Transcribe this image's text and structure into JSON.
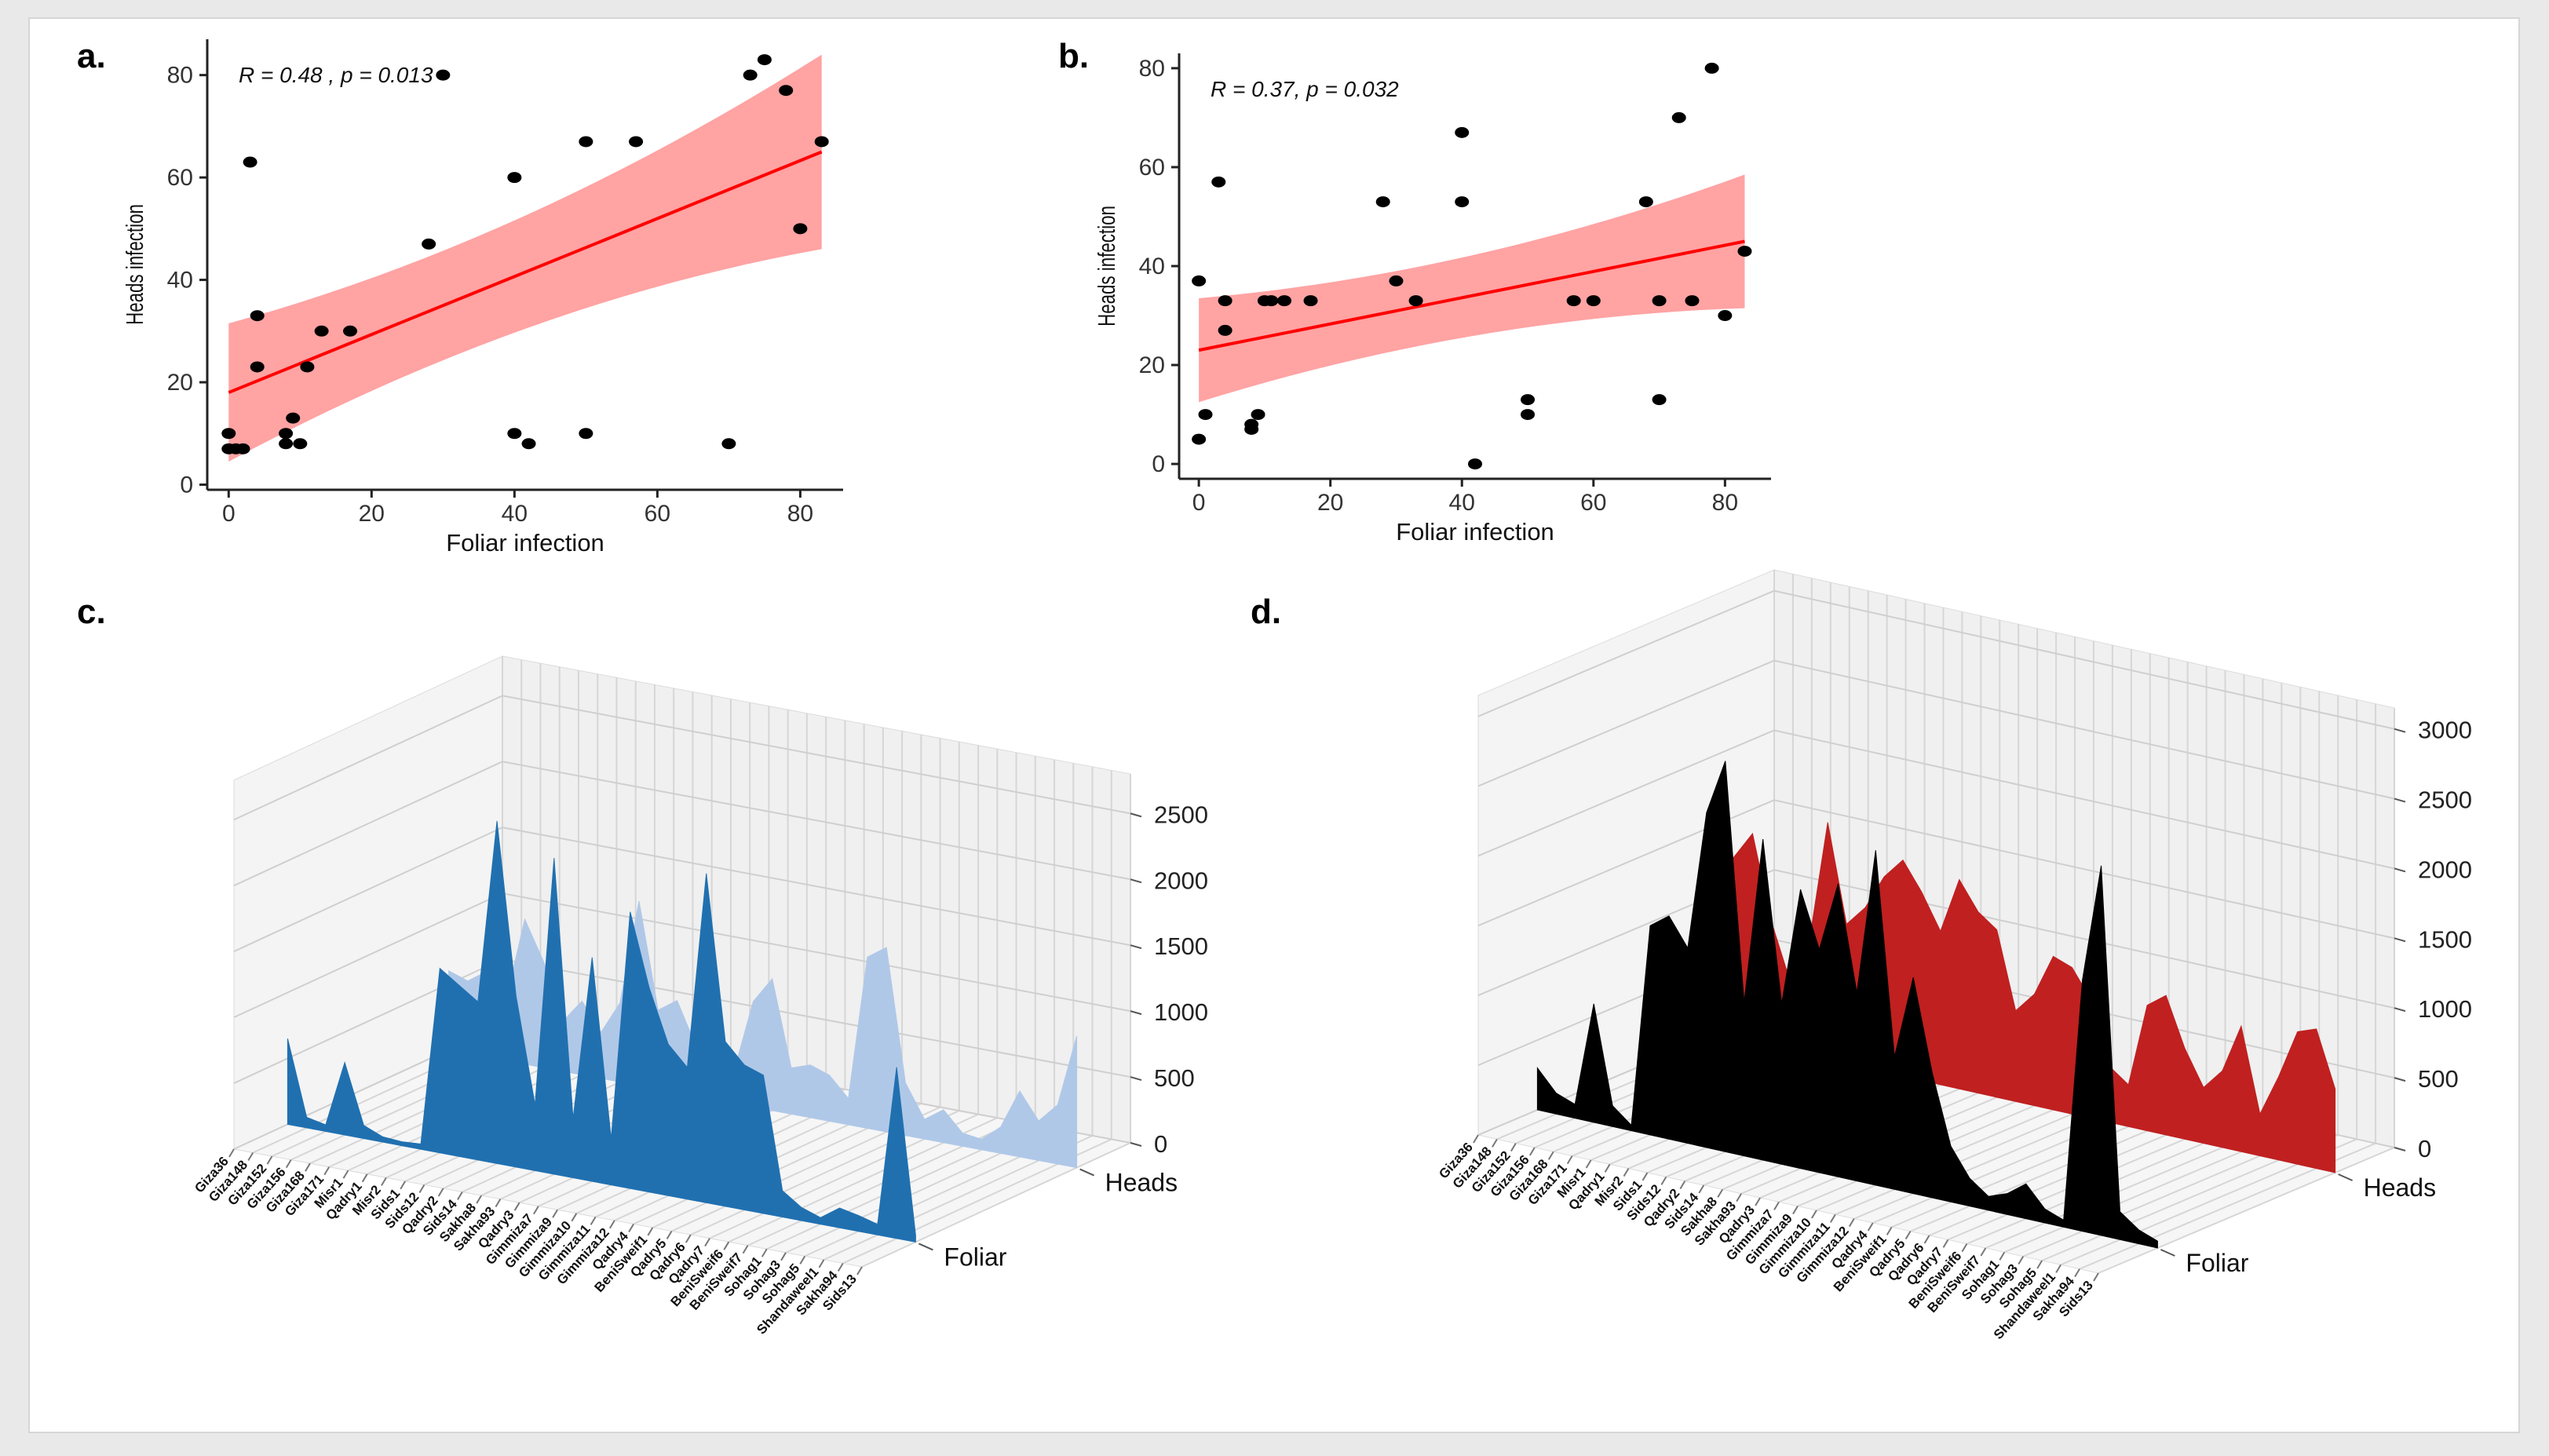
{
  "figure": {
    "panels": [
      {
        "label": "a."
      },
      {
        "label": "b."
      },
      {
        "label": "c."
      },
      {
        "label": "d."
      }
    ]
  },
  "chart_data": [
    {
      "type": "scatter",
      "panel": "a.",
      "xlabel": "Foliar infection",
      "ylabel": "Heads infection",
      "annotation": "R = 0.48 , p = 0.013",
      "xlim": [
        -3,
        86
      ],
      "ylim": [
        -1,
        87
      ],
      "xticks": [
        0,
        20,
        40,
        60,
        80
      ],
      "yticks": [
        0,
        20,
        40,
        60,
        80
      ],
      "fit": {
        "x": [
          0,
          83
        ],
        "y": [
          18,
          65
        ],
        "band_low_start": 4,
        "band_low_end": 46,
        "band_high_start": 31,
        "band_high_end": 84
      },
      "points": [
        [
          0,
          10
        ],
        [
          0,
          7
        ],
        [
          1,
          7
        ],
        [
          2,
          7
        ],
        [
          3,
          63
        ],
        [
          4,
          23
        ],
        [
          4,
          33
        ],
        [
          8,
          10
        ],
        [
          8,
          8
        ],
        [
          9,
          13
        ],
        [
          10,
          8
        ],
        [
          11,
          23
        ],
        [
          13,
          30
        ],
        [
          17,
          30
        ],
        [
          28,
          47
        ],
        [
          30,
          80
        ],
        [
          40,
          60
        ],
        [
          40,
          10
        ],
        [
          42,
          8
        ],
        [
          50,
          67
        ],
        [
          50,
          10
        ],
        [
          57,
          67
        ],
        [
          70,
          8
        ],
        [
          73,
          80
        ],
        [
          75,
          83
        ],
        [
          78,
          77
        ],
        [
          80,
          50
        ],
        [
          83,
          67
        ]
      ],
      "point_color": "#000000",
      "line_color": "#ff0000",
      "band_color": "#ff9999",
      "grid": false
    },
    {
      "type": "scatter",
      "panel": "b.",
      "xlabel": "Foliar infection",
      "ylabel": "Heads infection",
      "annotation": "R = 0.37, p = 0.032",
      "xlim": [
        -3,
        87
      ],
      "ylim": [
        -3,
        83
      ],
      "xticks": [
        0,
        20,
        40,
        60,
        80
      ],
      "yticks": [
        0,
        20,
        40,
        60,
        80
      ],
      "fit": {
        "x": [
          0,
          83
        ],
        "y": [
          23,
          45
        ],
        "band_low_start": 13,
        "band_low_end": 31,
        "band_high_start": 34,
        "band_high_end": 58
      },
      "points": [
        [
          0,
          37
        ],
        [
          0,
          5
        ],
        [
          1,
          10
        ],
        [
          3,
          57
        ],
        [
          4,
          33
        ],
        [
          4,
          27
        ],
        [
          8,
          8
        ],
        [
          8,
          7
        ],
        [
          9,
          10
        ],
        [
          10,
          33
        ],
        [
          11,
          33
        ],
        [
          13,
          33
        ],
        [
          17,
          33
        ],
        [
          28,
          53
        ],
        [
          30,
          37
        ],
        [
          33,
          33
        ],
        [
          40,
          67
        ],
        [
          40,
          53
        ],
        [
          42,
          0
        ],
        [
          50,
          13
        ],
        [
          50,
          10
        ],
        [
          57,
          33
        ],
        [
          60,
          33
        ],
        [
          68,
          53
        ],
        [
          70,
          33
        ],
        [
          70,
          13
        ],
        [
          73,
          70
        ],
        [
          75,
          33
        ],
        [
          78,
          80
        ],
        [
          80,
          30
        ],
        [
          83,
          43
        ]
      ],
      "point_color": "#000000",
      "line_color": "#ff0000",
      "band_color": "#ff9999",
      "grid": false
    },
    {
      "type": "area",
      "panel": "c.",
      "view": "3d",
      "categories": [
        "Giza36",
        "Giza148",
        "Giza152",
        "Giza156",
        "Giza168",
        "Giza171",
        "Misr1",
        "Qadry1",
        "Misr2",
        "Sids1",
        "Sids12",
        "Qadry2",
        "Sids14",
        "Sakha8",
        "Sakha93",
        "Qadry3",
        "Gimmiza7",
        "Gimmiza9",
        "Gimmiza10",
        "Gimmiza11",
        "Gimmiza12",
        "Qadry4",
        "BeniSweif1",
        "Qadry5",
        "Qadry6",
        "Qadry7",
        "BeniSweif6",
        "BeniSweif7",
        "Sohag1",
        "Sohag3",
        "Sohag5",
        "Shandaweel1",
        "Sakha94",
        "Sids13"
      ],
      "depth_labels": [
        "Foliar",
        "Heads"
      ],
      "zticks": [
        0,
        500,
        1000,
        1500,
        2000,
        2500
      ],
      "zlim": [
        0,
        2800
      ],
      "series": [
        {
          "values": [
            650,
            80,
            50,
            550,
            100,
            40,
            30,
            40,
            1400,
            1300,
            1200,
            2600,
            1300,
            500,
            2400,
            450,
            1700,
            350,
            2100,
            1550,
            1150,
            1000,
            2500,
            1250,
            1100,
            1050,
            200,
            100,
            50,
            150,
            120,
            80,
            1300,
            50
          ],
          "color": "#2070b0"
        },
        {
          "values": [
            600,
            550,
            650,
            450,
            1100,
            800,
            380,
            560,
            350,
            600,
            1400,
            600,
            700,
            380,
            350,
            250,
            800,
            1000,
            350,
            400,
            350,
            200,
            1300,
            1400,
            400,
            150,
            250,
            100,
            80,
            200,
            500,
            300,
            450,
            1000
          ],
          "color": "#b0c8e8"
        }
      ],
      "grid": true
    },
    {
      "type": "area",
      "panel": "d.",
      "view": "3d",
      "categories": [
        "Giza36",
        "Giza148",
        "Giza152",
        "Giza156",
        "Giza168",
        "Giza171",
        "Misr1",
        "Qadry1",
        "Misr2",
        "Sids1",
        "Sids12",
        "Qadry2",
        "Sids14",
        "Sakha8",
        "Sakha93",
        "Qadry3",
        "Gimmiza7",
        "Gimmiza9",
        "Gimmiza10",
        "Gimmiza11",
        "Gimmiza12",
        "Qadry4",
        "BeniSweif1",
        "Qadry5",
        "Qadry6",
        "Qadry7",
        "BeniSweif6",
        "BeniSweif7",
        "Sohag1",
        "Sohag3",
        "Sohag5",
        "Shandaweel1",
        "Sakha94",
        "Sids13"
      ],
      "depth_labels": [
        "Foliar",
        "Heads"
      ],
      "zticks": [
        0,
        500,
        1000,
        1500,
        2000,
        2500,
        3000
      ],
      "zlim": [
        0,
        3150
      ],
      "series": [
        {
          "values": [
            300,
            150,
            100,
            850,
            150,
            40,
            1500,
            1600,
            1400,
            2400,
            2800,
            1100,
            2300,
            1150,
            2000,
            1600,
            2100,
            1350,
            2400,
            950,
            1550,
            900,
            400,
            200,
            100,
            150,
            250,
            100,
            50,
            1800,
            2650,
            200,
            100,
            50
          ],
          "color": "#000000"
        },
        {
          "values": [
            1150,
            1300,
            1500,
            900,
            500,
            800,
            1700,
            1000,
            1150,
            1400,
            1550,
            1350,
            1100,
            1500,
            1300,
            1200,
            650,
            800,
            1100,
            1050,
            850,
            400,
            300,
            900,
            1000,
            650,
            400,
            550,
            900,
            300,
            600,
            950,
            1000,
            600
          ],
          "color": "#c02020"
        }
      ],
      "grid": true
    }
  ]
}
